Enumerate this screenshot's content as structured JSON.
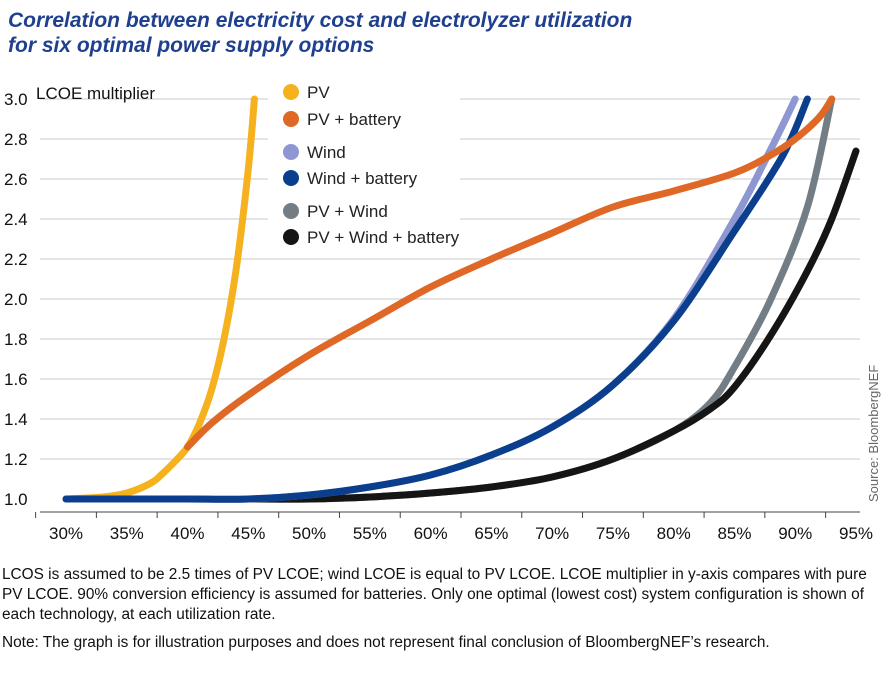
{
  "title_lines": [
    "Correlation between electricity cost and electrolyzer utilization",
    "for six optimal power supply options"
  ],
  "notes": {
    "line1": "LCOS is assumed to be 2.5 times of PV LCOE; wind LCOE is equal to PV LCOE. LCOE multiplier in y-axis compares with pure PV LCOE. 90% conversion efficiency is assumed for batteries. Only one optimal (lowest cost) system configuration is shown of each technology, at each utilization rate.",
    "line2": "Note: The graph is for illustration purposes and does not represent final conclusion of BloombergNEF’s research."
  },
  "source": "Source: BloombergNEF",
  "chart_data": {
    "type": "line",
    "ylabel": "LCOE multiplier",
    "xlim": [
      30,
      95
    ],
    "ylim": [
      1.0,
      3.0
    ],
    "x_ticks": [
      30,
      35,
      40,
      45,
      50,
      55,
      60,
      65,
      70,
      75,
      80,
      85,
      90,
      95
    ],
    "x_tick_labels": [
      "30%",
      "35%",
      "40%",
      "45%",
      "50%",
      "55%",
      "60%",
      "65%",
      "70%",
      "75%",
      "80%",
      "85%",
      "90%",
      "95%"
    ],
    "y_ticks": [
      1.0,
      1.2,
      1.4,
      1.6,
      1.8,
      2.0,
      2.2,
      2.4,
      2.6,
      2.8,
      3.0
    ],
    "y_tick_labels": [
      "1.0",
      "1.2",
      "1.4",
      "1.6",
      "1.8",
      "2.0",
      "2.2",
      "2.4",
      "2.6",
      "2.8",
      "3.0"
    ],
    "grid": "horizontal",
    "legend_position": "top-left",
    "series": [
      {
        "name": "PV",
        "color": "#f5b21e",
        "x": [
          30,
          33,
          35,
          37,
          38,
          39,
          40,
          41,
          42,
          43,
          44,
          45,
          45.5
        ],
        "y": [
          1.0,
          1.01,
          1.03,
          1.08,
          1.13,
          1.19,
          1.26,
          1.38,
          1.55,
          1.8,
          2.15,
          2.65,
          3.0
        ]
      },
      {
        "name": "PV + battery",
        "color": "#e06826",
        "x": [
          40,
          42,
          45,
          50,
          55,
          60,
          65,
          70,
          75,
          80,
          85,
          88,
          90,
          92,
          93
        ],
        "y": [
          1.26,
          1.38,
          1.52,
          1.72,
          1.89,
          2.06,
          2.2,
          2.33,
          2.46,
          2.54,
          2.63,
          2.72,
          2.8,
          2.91,
          3.0
        ]
      },
      {
        "name": "Wind",
        "color": "#8e97d2",
        "x": [
          30,
          40,
          45,
          50,
          55,
          60,
          65,
          70,
          75,
          80,
          85,
          88,
          90
        ],
        "y": [
          1.0,
          1.0,
          1.0,
          1.02,
          1.06,
          1.12,
          1.22,
          1.36,
          1.57,
          1.9,
          2.4,
          2.75,
          3.0
        ]
      },
      {
        "name": "Wind + battery",
        "color": "#0b3f8e",
        "x": [
          30,
          40,
          45,
          50,
          55,
          60,
          65,
          70,
          75,
          80,
          85,
          89,
          91
        ],
        "y": [
          1.0,
          1.0,
          1.0,
          1.02,
          1.06,
          1.12,
          1.22,
          1.36,
          1.57,
          1.89,
          2.34,
          2.72,
          3.0
        ]
      },
      {
        "name": "PV + Wind",
        "color": "#737d85",
        "x": [
          45,
          50,
          55,
          60,
          65,
          70,
          75,
          80,
          83,
          85,
          88,
          91,
          93
        ],
        "y": [
          1.0,
          1.0,
          1.01,
          1.03,
          1.06,
          1.11,
          1.2,
          1.34,
          1.48,
          1.66,
          2.0,
          2.46,
          3.0
        ]
      },
      {
        "name": "PV + Wind + battery",
        "color": "#151515",
        "x": [
          45,
          50,
          55,
          60,
          65,
          70,
          75,
          80,
          83,
          85,
          88,
          91,
          93,
          95
        ],
        "y": [
          1.0,
          1.0,
          1.01,
          1.03,
          1.06,
          1.11,
          1.2,
          1.34,
          1.45,
          1.56,
          1.82,
          2.14,
          2.4,
          2.74
        ]
      }
    ]
  }
}
